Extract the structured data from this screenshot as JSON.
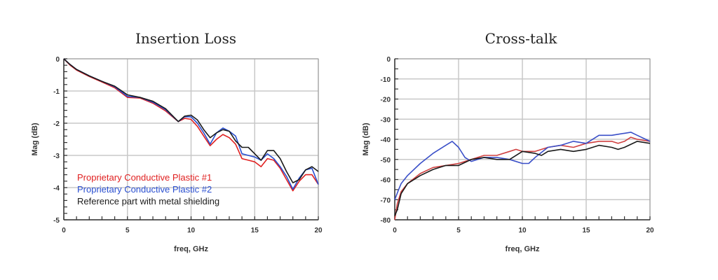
{
  "chart_data": [
    {
      "type": "line",
      "title": "Insertion Loss",
      "xlabel": "freq, GHz",
      "ylabel": "Mag (dB)",
      "xlim": [
        0,
        20
      ],
      "ylim": [
        -5,
        0
      ],
      "xticks": [
        "0",
        "5",
        "10",
        "15",
        "20"
      ],
      "yticks": [
        "0",
        "-1",
        "-2",
        "-3",
        "-4",
        "-5"
      ],
      "xtick_values": [
        0,
        5,
        10,
        15,
        20
      ],
      "ytick_values": [
        0,
        -1,
        -2,
        -3,
        -4,
        -5
      ],
      "grid": true,
      "legend_placement": "bottom-left",
      "series": [
        {
          "name": "Proprietary Conductive Plastic #1",
          "color": "#e02020",
          "x": [
            0,
            0.5,
            1,
            2,
            3,
            4,
            5,
            6,
            7,
            8,
            9,
            9.5,
            10,
            10.5,
            11,
            11.5,
            12,
            12.5,
            13,
            13.5,
            14,
            14.5,
            15,
            15.5,
            16,
            16.5,
            17,
            17.5,
            18,
            18.5,
            19,
            19.5,
            20
          ],
          "y": [
            0,
            -0.2,
            -0.35,
            -0.55,
            -0.72,
            -0.9,
            -1.2,
            -1.22,
            -1.38,
            -1.62,
            -1.95,
            -1.85,
            -1.88,
            -2.1,
            -2.4,
            -2.7,
            -2.5,
            -2.35,
            -2.45,
            -2.65,
            -3.1,
            -3.15,
            -3.2,
            -3.35,
            -3.1,
            -3.15,
            -3.4,
            -3.75,
            -4.1,
            -3.8,
            -3.6,
            -3.6,
            -3.9
          ]
        },
        {
          "name": "Proprietary Conductive Plastic #2",
          "color": "#2a4fd0",
          "x": [
            0,
            0.5,
            1,
            2,
            3,
            4,
            5,
            6,
            7,
            8,
            9,
            9.5,
            10,
            10.5,
            11,
            11.5,
            12,
            12.5,
            13,
            13.5,
            14,
            14.5,
            15,
            15.5,
            16,
            16.5,
            17,
            17.5,
            18,
            18.5,
            19,
            19.5,
            20
          ],
          "y": [
            0,
            -0.18,
            -0.33,
            -0.53,
            -0.7,
            -0.87,
            -1.17,
            -1.2,
            -1.35,
            -1.58,
            -1.95,
            -1.8,
            -1.8,
            -2.0,
            -2.3,
            -2.65,
            -2.3,
            -2.15,
            -2.25,
            -2.4,
            -2.95,
            -3.0,
            -3.05,
            -3.15,
            -2.95,
            -3.1,
            -3.35,
            -3.65,
            -4.05,
            -3.7,
            -3.45,
            -3.4,
            -3.9
          ]
        },
        {
          "name": "Reference part with metal shielding",
          "color": "#1a1a1a",
          "x": [
            0,
            0.5,
            1,
            2,
            3,
            4,
            5,
            6,
            7,
            8,
            9,
            9.5,
            10,
            10.5,
            11,
            11.5,
            12,
            12.5,
            13,
            13.5,
            14,
            14.5,
            15,
            15.5,
            16,
            16.5,
            17,
            17.5,
            18,
            18.5,
            19,
            19.5,
            20
          ],
          "y": [
            0,
            -0.18,
            -0.33,
            -0.53,
            -0.7,
            -0.85,
            -1.12,
            -1.2,
            -1.32,
            -1.55,
            -1.95,
            -1.78,
            -1.75,
            -1.9,
            -2.2,
            -2.45,
            -2.3,
            -2.2,
            -2.25,
            -2.55,
            -2.75,
            -2.75,
            -2.95,
            -3.15,
            -2.85,
            -2.85,
            -3.1,
            -3.5,
            -3.85,
            -3.75,
            -3.45,
            -3.35,
            -3.5
          ]
        }
      ]
    },
    {
      "type": "line",
      "title": "Cross-talk",
      "xlabel": "freq, GHz",
      "ylabel": "Mag (dB)",
      "xlim": [
        0,
        20
      ],
      "ylim": [
        -80,
        0
      ],
      "xticks": [
        "0",
        "5",
        "10",
        "15",
        "20"
      ],
      "yticks": [
        "0",
        "-10",
        "-20",
        "-30",
        "-40",
        "-50",
        "-60",
        "-70",
        "-80"
      ],
      "xtick_values": [
        0,
        5,
        10,
        15,
        20
      ],
      "ytick_values": [
        0,
        -10,
        -20,
        -30,
        -40,
        -50,
        -60,
        -70,
        -80
      ],
      "grid": true,
      "series": [
        {
          "name": "Proprietary Conductive Plastic #1",
          "color": "#d04040",
          "x": [
            0,
            0.2,
            0.5,
            1,
            2,
            3,
            4,
            5,
            6,
            7,
            8,
            9,
            9.5,
            10,
            11,
            12,
            13,
            14,
            15,
            16,
            17,
            17.5,
            18,
            18.5,
            19,
            20
          ],
          "y": [
            -80,
            -72,
            -66,
            -62,
            -57,
            -54,
            -53,
            -52,
            -50,
            -48,
            -48,
            -46,
            -45,
            -46,
            -46,
            -44,
            -43,
            -44,
            -42,
            -41,
            -41,
            -42,
            -41,
            -39,
            -40,
            -41
          ]
        },
        {
          "name": "Proprietary Conductive Plastic #2",
          "color": "#3a4fc8",
          "x": [
            0,
            0.3,
            0.5,
            1,
            2,
            3,
            4,
            4.5,
            5,
            5.5,
            6,
            7,
            8,
            9,
            10,
            10.5,
            11,
            12,
            13,
            14,
            15,
            16,
            17,
            18,
            18.5,
            19,
            20
          ],
          "y": [
            -70,
            -65,
            -62,
            -58,
            -52,
            -47,
            -43,
            -41,
            -44,
            -49,
            -51,
            -49,
            -49,
            -50,
            -52,
            -52,
            -49,
            -44,
            -43,
            -41,
            -42,
            -38,
            -38,
            -37,
            -36.5,
            -38,
            -41
          ]
        },
        {
          "name": "Reference part with metal shielding",
          "color": "#1a1a1a",
          "x": [
            0,
            0.2,
            0.5,
            1,
            2,
            3,
            4,
            5,
            6,
            7,
            8,
            9,
            10,
            11,
            11.5,
            12,
            13,
            14,
            15,
            16,
            17,
            17.5,
            18,
            19,
            20
          ],
          "y": [
            -78,
            -75,
            -67,
            -62,
            -58,
            -55,
            -53,
            -53,
            -50,
            -49,
            -50,
            -50,
            -46,
            -47,
            -48,
            -46,
            -45,
            -46,
            -45,
            -43,
            -44,
            -45,
            -44,
            -41,
            -42
          ]
        }
      ]
    }
  ]
}
